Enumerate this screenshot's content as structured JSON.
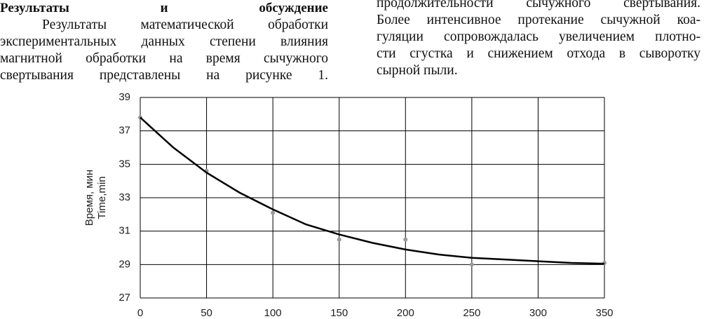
{
  "left": {
    "heading": "Результаты и обсуждение",
    "lines": [
      "Результаты математической обработки",
      "экспериментальных данных степени влияния",
      "магнитной обработки на время сычужного",
      "свертывания представлены на рисунке 1."
    ]
  },
  "right": {
    "lines": [
      "продолжительности сычужного свертывания.",
      "Более интенсивное протекание сычужной коа-",
      "гуляции сопровождалась увеличением плотно-",
      "сти сгустка и снижением отхода в сыворотку",
      "сырной пыли."
    ]
  },
  "chart_data": {
    "type": "scatter",
    "y_label": [
      "Время, мин",
      "Time,min"
    ],
    "xlim": [
      0,
      350
    ],
    "xticks": [
      0,
      50,
      100,
      150,
      200,
      250,
      300,
      350
    ],
    "ylim": [
      27,
      39
    ],
    "yticks": [
      27,
      29,
      31,
      33,
      35,
      37,
      39
    ],
    "grid": true,
    "series": [
      {
        "color": "#999999",
        "x": [
          0,
          50,
          100,
          150,
          200,
          250,
          350
        ],
        "values": [
          37.8,
          34.6,
          32.1,
          30.5,
          30.5,
          29.0,
          29.1
        ]
      },
      {
        "color": "#000000",
        "line": true,
        "x": [
          0,
          25,
          50,
          75,
          100,
          125,
          150,
          175,
          200,
          225,
          250,
          275,
          300,
          325,
          350
        ],
        "values": [
          37.8,
          36.0,
          34.5,
          33.3,
          32.3,
          31.4,
          30.8,
          30.3,
          29.9,
          29.6,
          29.4,
          29.3,
          29.2,
          29.1,
          29.05
        ]
      }
    ]
  }
}
